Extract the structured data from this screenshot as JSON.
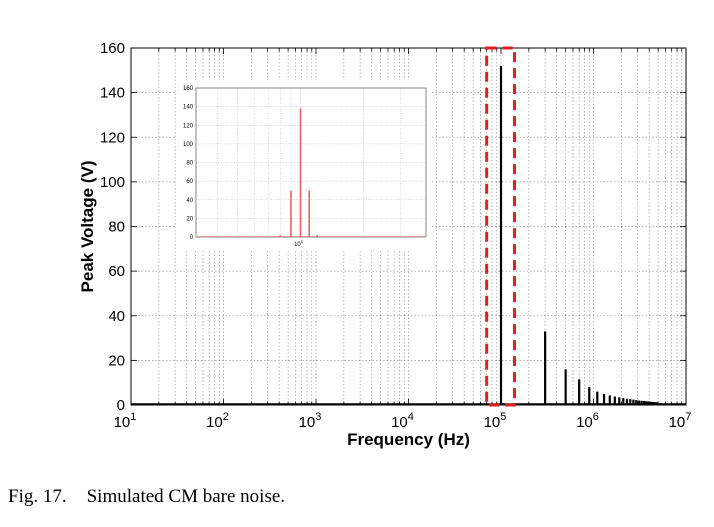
{
  "caption": {
    "number": "Fig. 17.",
    "text": "Simulated CM bare noise."
  },
  "chart_data": [
    {
      "type": "bar",
      "xscale": "log",
      "xlim": [
        10,
        10000000
      ],
      "ylim": [
        0,
        160
      ],
      "yticks": [
        0,
        20,
        40,
        60,
        80,
        100,
        120,
        140,
        160
      ],
      "xticks": [
        {
          "base": "10",
          "exp": "1"
        },
        {
          "base": "10",
          "exp": "2"
        },
        {
          "base": "10",
          "exp": "3"
        },
        {
          "base": "10",
          "exp": "4"
        },
        {
          "base": "10",
          "exp": "5"
        },
        {
          "base": "10",
          "exp": "6"
        },
        {
          "base": "10",
          "exp": "7"
        }
      ],
      "xlabel": "Frequency (Hz)",
      "ylabel": "Peak Voltage (V)",
      "grid": true,
      "color": "#000000",
      "x": [
        100000,
        300000,
        500000,
        700000,
        900000,
        1100000,
        1300000,
        1500000,
        1700000,
        1900000,
        2100000,
        2300000,
        2500000,
        2700000,
        2900000,
        3100000,
        3300000,
        3500000,
        3700000,
        3900000,
        4100000,
        4300000,
        4500000,
        4700000,
        4900000
      ],
      "values": [
        152,
        33,
        16,
        11.5,
        8,
        6,
        5,
        4.3,
        3.8,
        3.4,
        3.1,
        2.8,
        2.6,
        2.4,
        2.2,
        2.0,
        1.9,
        1.8,
        1.7,
        1.6,
        1.5,
        1.4,
        1.3,
        1.25,
        1.2
      ],
      "highlight": {
        "x_range": [
          70000,
          140000
        ],
        "y_range": [
          0,
          160
        ],
        "color": "#e02020",
        "style": "dashed"
      }
    },
    {
      "type": "bar",
      "inset": true,
      "xscale": "log",
      "ylim": [
        0,
        160
      ],
      "yticks": [
        0,
        20,
        40,
        60,
        80,
        100,
        120,
        140,
        160
      ],
      "xticks": [
        {
          "base": "10",
          "exp": "5"
        }
      ],
      "grid": true,
      "color": "#f06060",
      "x": [
        80000,
        90000,
        100000,
        110000,
        120000
      ],
      "values": [
        2,
        50,
        138,
        50,
        2
      ]
    }
  ]
}
